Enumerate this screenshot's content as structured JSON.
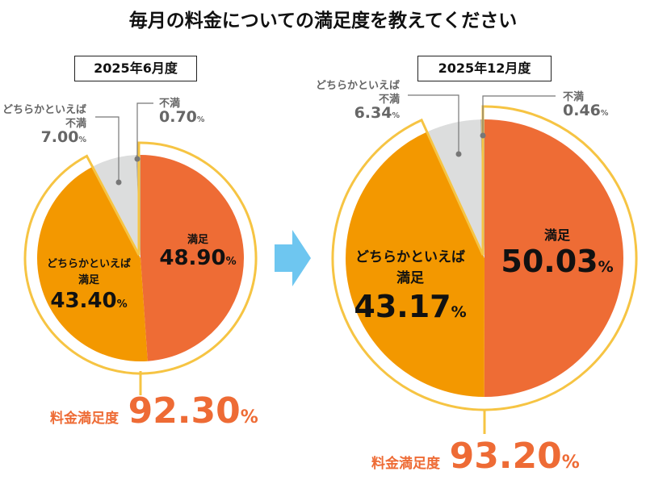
{
  "title": "毎月の料金についての満足度を教えてください",
  "colors": {
    "satisfied": "#EE6C35",
    "somewhat_satisfied": "#F39800",
    "somewhat_dissatisfied": "#DCDDDD",
    "dissatisfied": "#A9AAAA",
    "outline": "#F6C443",
    "arrow": "#6EC6F0",
    "total": "#EE6B35"
  },
  "arrow_icon": "right-arrow-icon",
  "chart_data": [
    {
      "type": "pie",
      "title": "2025年6月度",
      "categories": [
        "満足",
        "どちらかといえば満足",
        "どちらかといえば不満",
        "不満"
      ],
      "values": [
        48.9,
        43.4,
        7.0,
        0.7
      ],
      "labels": {
        "satisfied": "満足",
        "somewhat_satisfied_1": "どちらかといえば",
        "somewhat_satisfied_2": "満足",
        "somewhat_dissatisfied_1": "どちらかといえば",
        "somewhat_dissatisfied_2": "不満",
        "dissatisfied": "不満"
      },
      "value_labels": [
        "48.90",
        "43.40",
        "7.00",
        "0.70"
      ],
      "unit": "%",
      "total_label": "料金満足度",
      "total_value": "92.30"
    },
    {
      "type": "pie",
      "title": "2025年12月度",
      "categories": [
        "満足",
        "どちらかといえば満足",
        "どちらかといえば不満",
        "不満"
      ],
      "values": [
        50.03,
        43.17,
        6.34,
        0.46
      ],
      "labels": {
        "satisfied": "満足",
        "somewhat_satisfied_1": "どちらかといえば",
        "somewhat_satisfied_2": "満足",
        "somewhat_dissatisfied_1": "どちらかといえば",
        "somewhat_dissatisfied_2": "不満",
        "dissatisfied": "不満"
      },
      "value_labels": [
        "50.03",
        "43.17",
        "6.34",
        "0.46"
      ],
      "unit": "%",
      "total_label": "料金満足度",
      "total_value": "93.20"
    }
  ]
}
